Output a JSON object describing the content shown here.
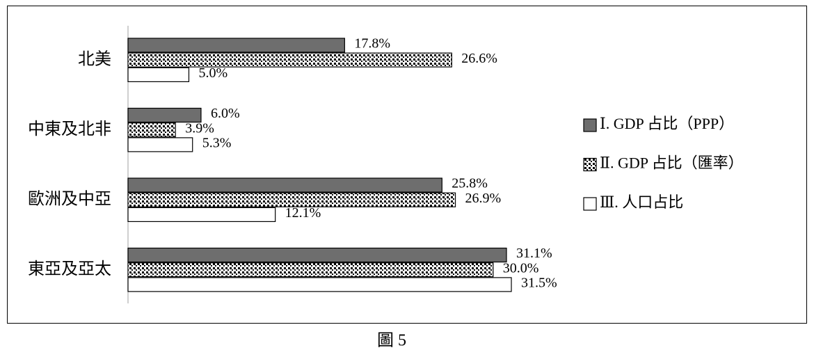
{
  "chart_data": {
    "type": "bar",
    "orientation": "horizontal",
    "categories": [
      "北美",
      "中東及北非",
      "歐洲及中亞",
      "東亞及亞太"
    ],
    "series": [
      {
        "name": "Ⅰ. GDP 占比（PPP）",
        "color": "#6e6e6e",
        "values": [
          17.8,
          6.0,
          25.8,
          31.1
        ],
        "value_labels": [
          "17.8%",
          "6.0%",
          "25.8%",
          "31.1%"
        ]
      },
      {
        "name": "Ⅱ. GDP 占比（匯率）",
        "color": "#000000",
        "fill_pattern": "checker",
        "values": [
          26.6,
          3.9,
          26.9,
          30.0
        ],
        "value_labels": [
          "26.6%",
          "3.9%",
          "26.9%",
          "30.0%"
        ]
      },
      {
        "name": "Ⅲ. 人口占比",
        "color": "#ffffff",
        "values": [
          5.0,
          5.3,
          12.1,
          31.5
        ],
        "value_labels": [
          "5.0%",
          "5.3%",
          "12.1%",
          "31.5%"
        ]
      }
    ],
    "caption": "圖 5"
  }
}
